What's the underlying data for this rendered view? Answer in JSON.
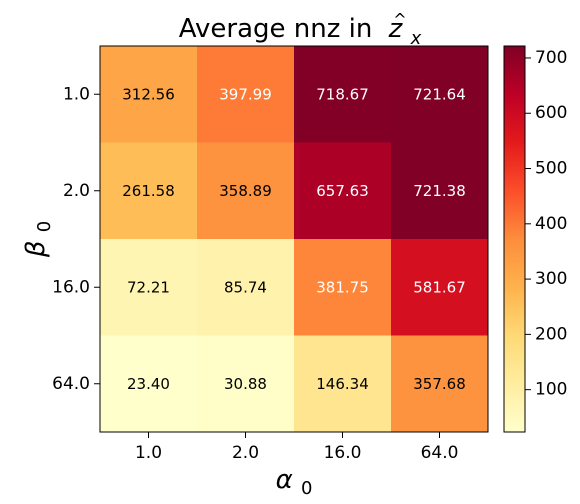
{
  "chart_data": {
    "type": "heatmap",
    "title": "Average nnz in",
    "title_math": {
      "base": "z",
      "sub": "x",
      "hat": "^"
    },
    "xlabel": {
      "base": "α",
      "sub": "0"
    },
    "ylabel": {
      "base": "β",
      "sub": "0"
    },
    "x_categories": [
      "1.0",
      "2.0",
      "16.0",
      "64.0"
    ],
    "y_categories": [
      "1.0",
      "2.0",
      "16.0",
      "64.0"
    ],
    "values": [
      [
        312.56,
        397.99,
        718.67,
        721.64
      ],
      [
        261.58,
        358.89,
        657.63,
        721.38
      ],
      [
        72.21,
        85.74,
        381.75,
        581.67
      ],
      [
        23.4,
        30.88,
        146.34,
        357.68
      ]
    ],
    "value_labels": [
      [
        "312.56",
        "397.99",
        "718.67",
        "721.64"
      ],
      [
        "261.58",
        "358.89",
        "657.63",
        "721.38"
      ],
      [
        "72.21",
        "85.74",
        "381.75",
        "581.67"
      ],
      [
        "23.40",
        "30.88",
        "146.34",
        "357.68"
      ]
    ],
    "colormap": "YlOrRd",
    "color_range": [
      23.4,
      721.64
    ],
    "colorbar_ticks": [
      "100",
      "200",
      "300",
      "400",
      "500",
      "600",
      "700"
    ],
    "colorbar_tick_values": [
      100,
      200,
      300,
      400,
      500,
      600,
      700
    ],
    "grid": false,
    "legend": "colorbar-right"
  }
}
